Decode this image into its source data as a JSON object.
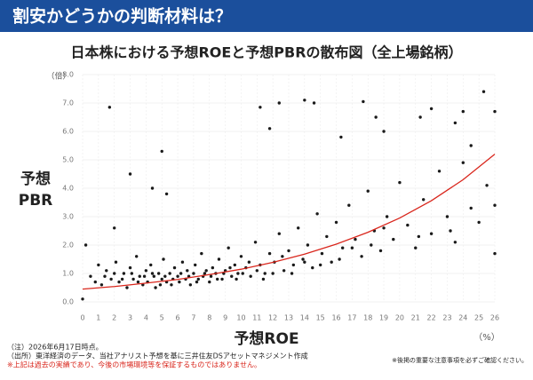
{
  "header": {
    "title": "割安かどうかの判断材料は？"
  },
  "chart_data": {
    "type": "scatter",
    "title": "日本株における予想ROEと予想PBRの散布図（全上場銘柄）",
    "ylabel": [
      "予想",
      "PBR"
    ],
    "yunit": "（倍）",
    "xlabel": "予想ROE",
    "xunit": "（%）",
    "xlim": [
      0,
      26
    ],
    "ylim": [
      0,
      8
    ],
    "xticks": [
      0,
      1,
      2,
      3,
      4,
      5,
      6,
      7,
      8,
      9,
      10,
      11,
      12,
      13,
      14,
      15,
      16,
      17,
      18,
      19,
      20,
      21,
      22,
      23,
      24,
      25,
      26
    ],
    "yticks": [
      {
        "value": 0,
        "label": "0.0"
      },
      {
        "value": 1,
        "label": "1.0"
      },
      {
        "value": 2,
        "label": "2.0"
      },
      {
        "value": 3,
        "label": "3.0"
      },
      {
        "value": 4,
        "label": "4.0"
      },
      {
        "value": 5,
        "label": "5.0"
      },
      {
        "value": 6,
        "label": "6.0"
      },
      {
        "value": 7,
        "label": "7.0"
      },
      {
        "value": 8,
        "label": "8.0"
      }
    ],
    "grid": true,
    "color": "#1a1a1a",
    "x": [
      0.5,
      1.0,
      1.2,
      1.5,
      1.8,
      2.1,
      2.3,
      2.6,
      2.8,
      3.0,
      3.2,
      3.4,
      3.6,
      3.8,
      4.0,
      4.1,
      4.3,
      4.5,
      4.6,
      4.8,
      5.0,
      5.1,
      5.3,
      5.5,
      5.6,
      5.8,
      6.0,
      6.1,
      6.3,
      6.5,
      6.6,
      6.8,
      7.0,
      7.1,
      7.3,
      7.5,
      7.6,
      7.8,
      8.0,
      8.2,
      8.4,
      8.6,
      8.8,
      9.0,
      9.2,
      9.4,
      9.6,
      9.8,
      10.0,
      10.3,
      10.6,
      10.9,
      11.2,
      11.5,
      11.8,
      12.1,
      12.4,
      12.7,
      13.0,
      13.3,
      13.6,
      13.9,
      14.2,
      14.5,
      14.8,
      15.1,
      15.4,
      15.7,
      16.0,
      16.4,
      16.8,
      17.2,
      17.6,
      18.0,
      18.4,
      18.8,
      19.2,
      19.6,
      20.0,
      20.5,
      21.0,
      21.5,
      22.0,
      22.5,
      23.0,
      23.5,
      24.0,
      24.5,
      25.0,
      25.5,
      26.0,
      0.8,
      1.4,
      2.0,
      2.5,
      3.1,
      3.5,
      3.9,
      4.4,
      4.9,
      5.2,
      5.7,
      6.2,
      6.7,
      7.2,
      7.7,
      8.1,
      8.5,
      8.9,
      9.3,
      9.7,
      10.1,
      10.5,
      11.0,
      11.4,
      12.0,
      12.6,
      13.2,
      14.0,
      15.0,
      16.2,
      17.0,
      18.2,
      19.0,
      21.2,
      23.2,
      0,
      0.2,
      1.7,
      2.0,
      3.0,
      4.4,
      5.0,
      5.3,
      11.2,
      11.8,
      12.4,
      14.0,
      14.6,
      16.3,
      17.7,
      18.5,
      19.0,
      21.3,
      22.0,
      23.5,
      24.0,
      25.3,
      26.0,
      24.5,
      26.0
    ],
    "values": [
      0.9,
      1.3,
      0.6,
      1.1,
      0.8,
      1.4,
      0.7,
      1.0,
      0.5,
      1.2,
      0.8,
      1.6,
      0.9,
      0.6,
      1.1,
      0.7,
      1.3,
      0.9,
      0.5,
      1.0,
      0.8,
      1.5,
      0.7,
      1.0,
      0.6,
      1.2,
      0.9,
      0.7,
      1.4,
      0.8,
      1.1,
      0.6,
      1.0,
      1.3,
      0.8,
      1.7,
      0.9,
      1.1,
      0.7,
      1.2,
      1.0,
      1.5,
      0.8,
      1.1,
      1.9,
      0.9,
      1.3,
      1.0,
      1.6,
      1.2,
      0.9,
      2.1,
      1.3,
      1.0,
      1.7,
      1.4,
      2.4,
      1.1,
      1.8,
      1.3,
      2.6,
      1.5,
      2.0,
      1.2,
      3.1,
      1.7,
      2.3,
      1.4,
      2.8,
      1.9,
      3.4,
      2.2,
      1.6,
      3.9,
      2.5,
      1.8,
      3.0,
      2.2,
      4.2,
      2.7,
      1.9,
      3.6,
      2.4,
      4.6,
      3.0,
      2.1,
      4.9,
      3.3,
      2.8,
      4.1,
      3.4,
      0.7,
      0.9,
      1.0,
      0.8,
      1.0,
      0.7,
      0.9,
      1.0,
      0.6,
      0.9,
      0.8,
      1.0,
      0.9,
      0.7,
      1.0,
      0.9,
      0.8,
      1.0,
      1.2,
      0.8,
      1.0,
      1.4,
      1.1,
      0.8,
      1.0,
      1.6,
      1.0,
      1.4,
      1.3,
      1.5,
      1.9,
      2.0,
      2.6,
      2.3,
      2.5,
      0.1,
      2.0,
      6.85,
      2.6,
      4.5,
      4.0,
      5.3,
      3.8,
      6.85,
      6.1,
      7.0,
      7.1,
      7.0,
      5.8,
      7.05,
      6.5,
      6.0,
      6.5,
      6.8,
      6.3,
      6.7,
      7.4,
      6.7,
      5.5,
      1.7
    ],
    "trend": {
      "color": "#d9261c",
      "x": [
        0,
        2,
        4,
        6,
        8,
        10,
        12,
        14,
        16,
        18,
        20,
        22,
        24,
        26
      ],
      "values": [
        0.45,
        0.54,
        0.66,
        0.79,
        0.96,
        1.15,
        1.39,
        1.68,
        2.03,
        2.45,
        2.95,
        3.56,
        4.3,
        5.2
      ]
    }
  },
  "notes": [
    "（注）2026年6月17日時点。",
    "（出所）東洋経済のデータ、当社アナリスト予想を基に三井住友DSアセットマネジメント作成"
  ],
  "warning": "※上記は過去の実績であり、今後の市場環境等を保証するものではありません。",
  "disclaimer": "※後掲の重要な注意事項を必ずご確認ください。"
}
